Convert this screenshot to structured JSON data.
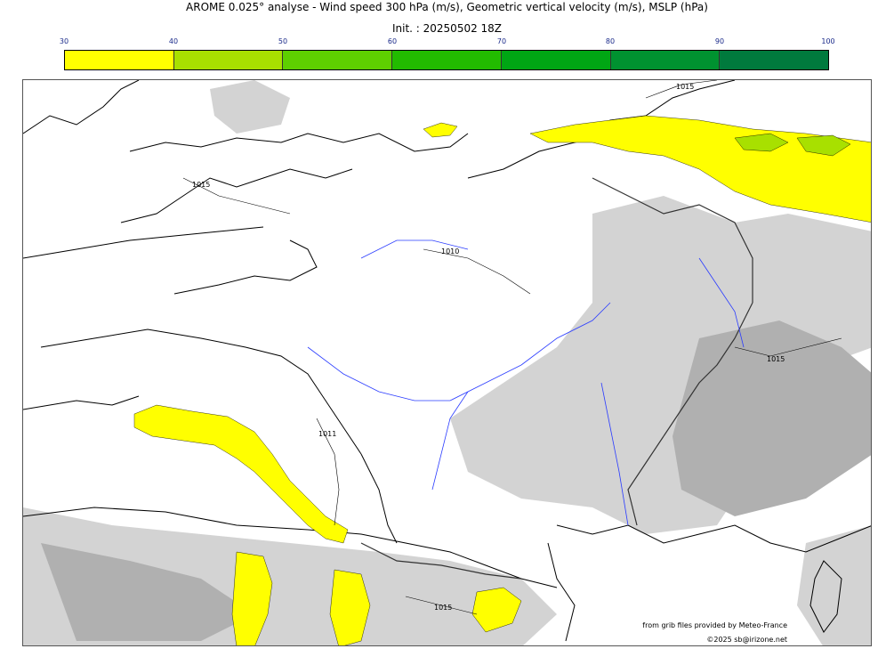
{
  "header": {
    "title": "AROME 0.025° analyse - Wind speed 300 hPa (m/s), Geometric vertical velocity (m/s), MSLP (hPa)",
    "init": "Init. : 20250502 18Z"
  },
  "colorbar": {
    "ticks": [
      "30",
      "40",
      "50",
      "60",
      "70",
      "80",
      "90",
      "100"
    ],
    "colors": [
      "#ffff00",
      "#a8e000",
      "#5ecf00",
      "#22bb00",
      "#00a614",
      "#009230",
      "#007a3d"
    ]
  },
  "map": {
    "isobar_labels": [
      "1015",
      "1015",
      "1010",
      "1011",
      "1015",
      "1015"
    ]
  },
  "credits": {
    "line1": "from grib files provided by Meteo-France",
    "line2": "©2025 sb@irizone.net"
  }
}
